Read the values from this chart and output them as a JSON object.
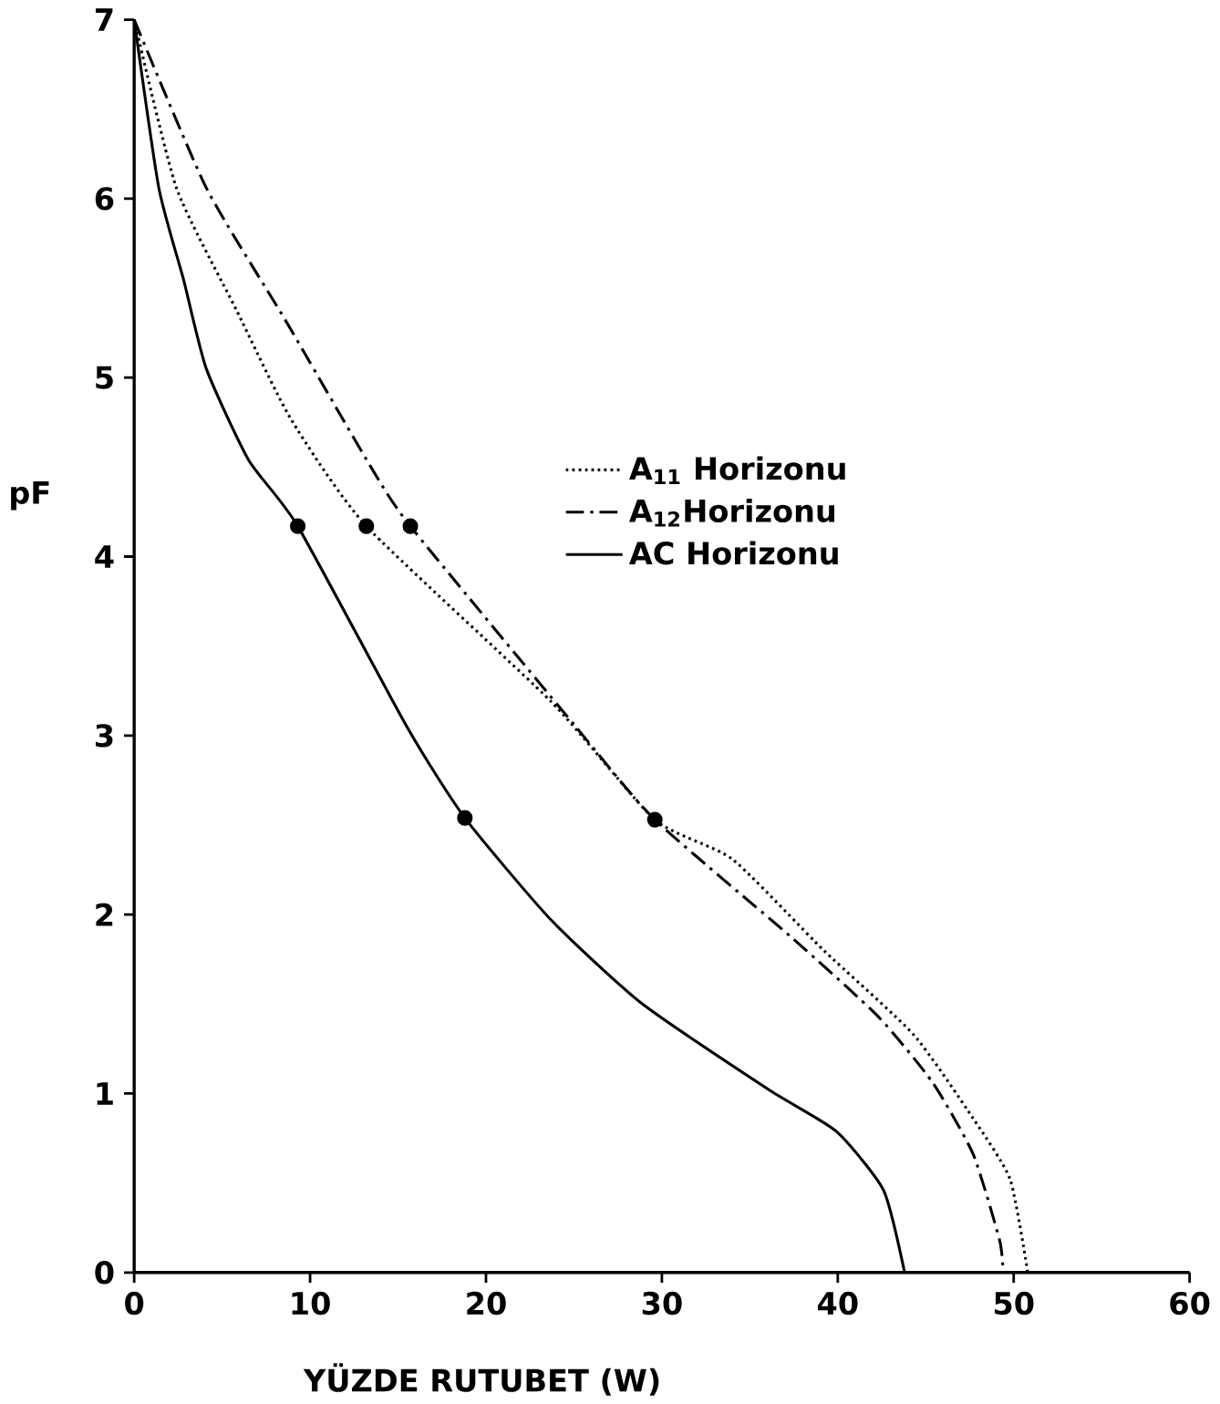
{
  "chart_data": {
    "type": "line",
    "xlabel": "YÜZDE RUTUBET (W)",
    "ylabel": "pF",
    "xlim": [
      0,
      60
    ],
    "ylim": [
      0,
      7
    ],
    "xticks": [
      0,
      10,
      20,
      30,
      40,
      50,
      60
    ],
    "yticks": [
      0,
      1,
      2,
      3,
      4,
      5,
      6,
      7
    ],
    "grid": false,
    "legend": "top right",
    "marker": "none",
    "series": [
      {
        "name": "A$_{11}$ Horizonu",
        "color": "#000000",
        "line_style": "dotted",
        "x": [
          0,
          2.4,
          5.8,
          8.9,
          13.2,
          23.7,
          29.6,
          34.0,
          39.2,
          44.3,
          47.7,
          49.8,
          50.8
        ],
        "values": [
          7,
          6.06,
          5.38,
          4.77,
          4.17,
          3.19,
          2.53,
          2.31,
          1.8,
          1.33,
          0.86,
          0.52,
          0
        ]
      },
      {
        "name": "A$_{12}$Horizonu",
        "color": "#000000",
        "line_style": "dashdot",
        "x": [
          0,
          4.1,
          8.6,
          13.4,
          15.7,
          25.1,
          29.6,
          37.4,
          42.3,
          45.4,
          47.7,
          49.2,
          49.4
        ],
        "values": [
          7,
          6.06,
          5.32,
          4.51,
          4.17,
          3.05,
          2.53,
          1.87,
          1.43,
          1.06,
          0.66,
          0.18,
          0
        ]
      },
      {
        "name": "AC Horizonu",
        "color": "#000000",
        "line_style": "solid",
        "x": [
          0,
          1.4,
          2.8,
          4.1,
          6.5,
          9.3,
          15.5,
          18.8,
          23.7,
          28.9,
          36.1,
          39.9,
          42.6,
          43.8
        ],
        "values": [
          7,
          6.06,
          5.55,
          5.05,
          4.54,
          4.17,
          3.05,
          2.54,
          1.97,
          1.5,
          1.02,
          0.79,
          0.46,
          0
        ]
      },
      {
        "type": "scatter",
        "marker": "circle",
        "color": "#000000",
        "x": [
          9.3,
          13.2,
          15.7,
          18.8,
          29.6
        ],
        "values": [
          4.17,
          4.17,
          4.17,
          2.54,
          2.53
        ]
      }
    ]
  }
}
